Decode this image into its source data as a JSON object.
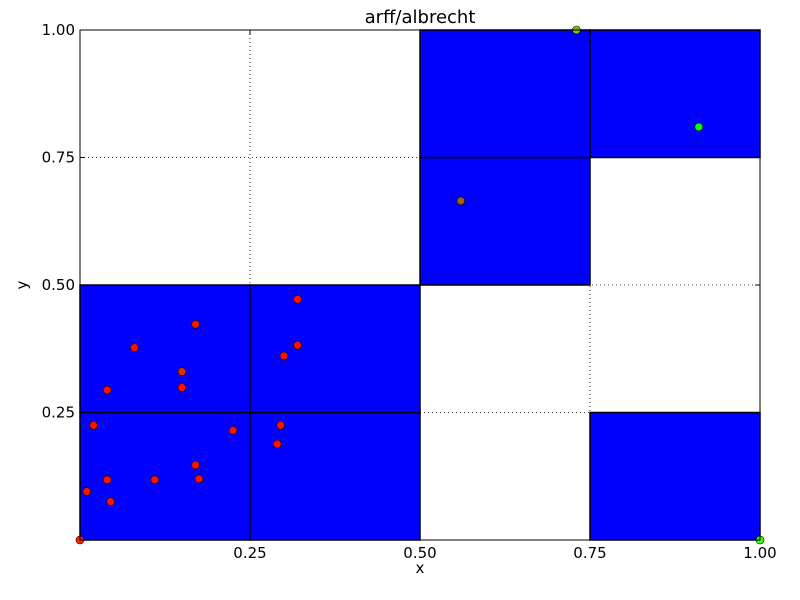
{
  "chart_data": {
    "type": "scatter",
    "title": "arff/albrecht",
    "xlabel": "x",
    "ylabel": "y",
    "xlim": [
      0,
      1
    ],
    "ylim": [
      0,
      1
    ],
    "grid": true,
    "x_ticks": [
      0.25,
      0.5,
      0.75,
      1.0
    ],
    "x_tick_labels": [
      "0.25",
      "0.50",
      "0.75",
      "1.00"
    ],
    "y_ticks": [
      0.25,
      0.5,
      0.75,
      1.0
    ],
    "y_tick_labels": [
      "0.25",
      "0.50",
      "0.75",
      "1.00"
    ],
    "region_color": "#0000ff",
    "regions": [
      {
        "x0": 0.0,
        "x1": 0.25,
        "y0": 0.0,
        "y1": 0.25
      },
      {
        "x0": 0.25,
        "x1": 0.5,
        "y0": 0.0,
        "y1": 0.25
      },
      {
        "x0": 0.0,
        "x1": 0.25,
        "y0": 0.25,
        "y1": 0.5
      },
      {
        "x0": 0.25,
        "x1": 0.5,
        "y0": 0.25,
        "y1": 0.5
      },
      {
        "x0": 0.5,
        "x1": 0.75,
        "y0": 0.5,
        "y1": 0.75
      },
      {
        "x0": 0.5,
        "x1": 0.75,
        "y0": 0.75,
        "y1": 1.0
      },
      {
        "x0": 0.75,
        "x1": 1.0,
        "y0": 0.75,
        "y1": 1.0
      },
      {
        "x0": 0.75,
        "x1": 1.0,
        "y0": 0.0,
        "y1": 0.25
      }
    ],
    "points": [
      {
        "x": 0.0,
        "y": 0.0,
        "color": "#ff2000"
      },
      {
        "x": 1.0,
        "y": 0.0,
        "color": "#40ff00"
      },
      {
        "x": 0.73,
        "y": 1.0,
        "color": "#80c000"
      },
      {
        "x": 0.91,
        "y": 0.81,
        "color": "#00ff00"
      },
      {
        "x": 0.56,
        "y": 0.665,
        "color": "#a06000"
      },
      {
        "x": 0.32,
        "y": 0.472,
        "color": "#ff1000"
      },
      {
        "x": 0.32,
        "y": 0.382,
        "color": "#ff1000"
      },
      {
        "x": 0.3,
        "y": 0.361,
        "color": "#ff1000"
      },
      {
        "x": 0.17,
        "y": 0.423,
        "color": "#ff1000"
      },
      {
        "x": 0.08,
        "y": 0.377,
        "color": "#ff1000"
      },
      {
        "x": 0.15,
        "y": 0.33,
        "color": "#e03000"
      },
      {
        "x": 0.15,
        "y": 0.299,
        "color": "#ff1000"
      },
      {
        "x": 0.04,
        "y": 0.294,
        "color": "#ff1000"
      },
      {
        "x": 0.02,
        "y": 0.225,
        "color": "#ff1000"
      },
      {
        "x": 0.225,
        "y": 0.215,
        "color": "#ff1000"
      },
      {
        "x": 0.295,
        "y": 0.225,
        "color": "#ff1000"
      },
      {
        "x": 0.29,
        "y": 0.188,
        "color": "#ff1000"
      },
      {
        "x": 0.17,
        "y": 0.147,
        "color": "#ff1000"
      },
      {
        "x": 0.175,
        "y": 0.12,
        "color": "#ff1000"
      },
      {
        "x": 0.11,
        "y": 0.118,
        "color": "#ff1000"
      },
      {
        "x": 0.04,
        "y": 0.118,
        "color": "#ff1000"
      },
      {
        "x": 0.01,
        "y": 0.095,
        "color": "#ff1000"
      },
      {
        "x": 0.045,
        "y": 0.075,
        "color": "#ff1000"
      }
    ]
  }
}
